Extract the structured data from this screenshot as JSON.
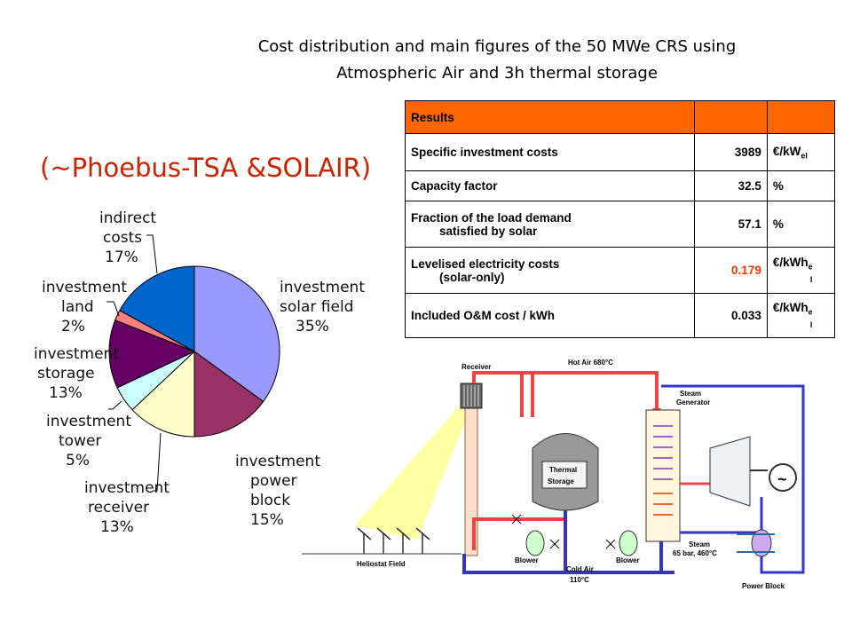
{
  "title": {
    "line1": "Cost distribution and main figures of the 50 MWe CRS using",
    "line2": "Atmospheric Air  and 3h thermal storage"
  },
  "subtitle": "(~Phoebus-TSA &SOLAIR)",
  "chart_data": {
    "type": "pie",
    "slices": [
      {
        "name": "investment solar field",
        "label_lines": [
          "investment",
          "solar field",
          "35%"
        ],
        "value": 35,
        "color": "#9999ff"
      },
      {
        "name": "investment power block",
        "label_lines": [
          "investment",
          "power",
          "block",
          "15%"
        ],
        "value": 15,
        "color": "#993366"
      },
      {
        "name": "investment receiver",
        "label_lines": [
          "investment",
          "receiver",
          "13%"
        ],
        "value": 13,
        "color": "#ffffcc"
      },
      {
        "name": "investment tower",
        "label_lines": [
          "investment",
          "tower",
          "5%"
        ],
        "value": 5,
        "color": "#ccffff"
      },
      {
        "name": "investment storage",
        "label_lines": [
          "investment",
          "storage",
          "13%"
        ],
        "value": 13,
        "color": "#660066"
      },
      {
        "name": "investment land",
        "label_lines": [
          "investment",
          "land",
          "2%"
        ],
        "value": 2,
        "color": "#ff8080"
      },
      {
        "name": "indirect costs",
        "label_lines": [
          "indirect",
          "costs",
          "17%"
        ],
        "value": 17,
        "color": "#0066cc"
      }
    ]
  },
  "table": {
    "header": "Results",
    "rows": [
      {
        "label1": "Specific investment costs",
        "label2": "",
        "value": "3989",
        "unit": "€/kW",
        "unit_sub": "el",
        "unit_tail": ""
      },
      {
        "label1": "Capacity factor",
        "label2": "",
        "value": "32.5",
        "unit": "%",
        "unit_sub": "",
        "unit_tail": ""
      },
      {
        "label1": "Fraction of the load demand",
        "label2": "satisfied by solar",
        "value": "57.1",
        "unit": "%",
        "unit_sub": "",
        "unit_tail": ""
      },
      {
        "label1": "Levelised electricity costs",
        "label2": "(solar-only)",
        "value": "0.179",
        "unit": "€/kWh",
        "unit_sub": "e",
        "unit_tail": "l"
      },
      {
        "label1": "Included O&M cost / kWh",
        "label2": "",
        "value": "0.033",
        "unit": "€/kWh",
        "unit_sub": "e",
        "unit_tail": "l"
      }
    ],
    "colors": {
      "header": "#ff6600",
      "highlight_value": "#ff3300"
    }
  },
  "schematic": {
    "receiver": "Receiver",
    "hot_air": "Hot Air 680°C",
    "steam_generator_1": "Steam",
    "steam_generator_2": "Generator",
    "thermal_1": "Thermal",
    "thermal_2": "Storage",
    "heliostat_field": "Heliostat Field",
    "blower_1": "Blower",
    "blower_2": "Blower",
    "cold_air_1": "Cold Air",
    "cold_air_2": "110°C",
    "steam_1": "Steam",
    "steam_2": "65 bar, 460°C",
    "power_block": "Power Block",
    "generator_symbol": "~"
  }
}
